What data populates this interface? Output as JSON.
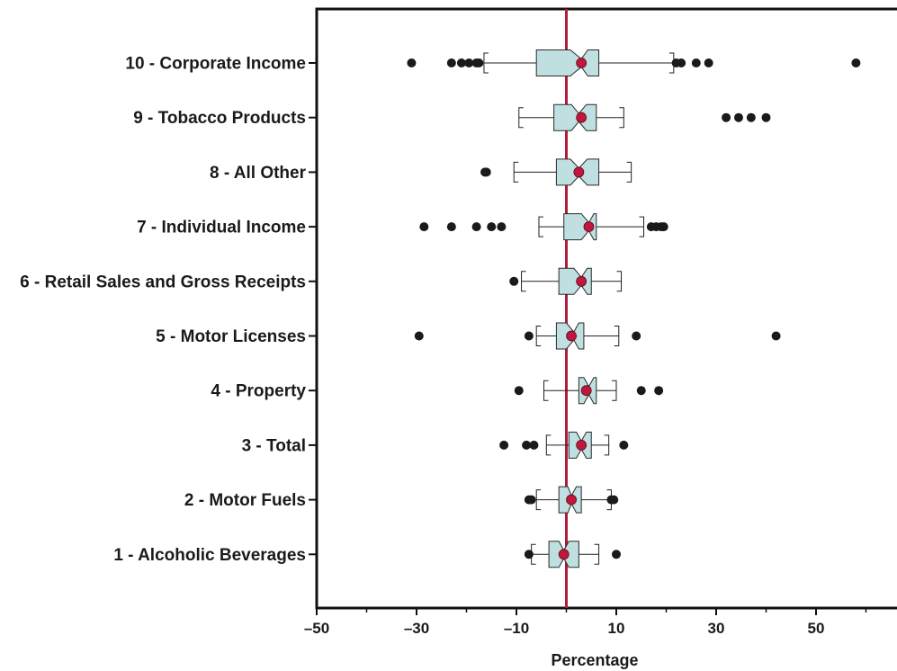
{
  "chart_data": {
    "type": "boxplot",
    "orientation": "horizontal",
    "xlabel": "Percentage",
    "xlim": [
      -50,
      68
    ],
    "xticks": [
      -50,
      -30,
      -10,
      10,
      30,
      50
    ],
    "xtick_labels": [
      "–50",
      "–30",
      "–10",
      "10",
      "30",
      "50"
    ],
    "xminor_ticks": [
      -40,
      -20,
      0,
      20,
      40,
      60
    ],
    "reference_line": 0,
    "colors": {
      "box_fill": "#bfdfe1",
      "box_stroke": "#2a2a2a",
      "mean_marker": "#c0173c",
      "reference_line": "#b01d3a",
      "outlier": "#1a1a1a"
    },
    "categories": [
      "10 - Corporate Income",
      "9 - Tobacco Products",
      "8 - All Other",
      "7 - Individual Income",
      "6 - Retail Sales and Gross Receipts",
      "5 -  Motor Licenses",
      "4 - Property",
      "3 - Total",
      "2 - Motor Fuels",
      "1 - Alcoholic Beverages"
    ],
    "boxes": [
      {
        "whisker_low": -16.5,
        "q1": -6.0,
        "median": 3.0,
        "q3": 6.5,
        "whisker_high": 21.5,
        "notch": [
          0.8,
          4.3
        ],
        "mean": 3.0,
        "outliers": [
          -31.0,
          -23.0,
          -21.0,
          -19.5,
          -18.0,
          -17.5,
          22.0,
          23.0,
          26.0,
          28.5,
          58.0
        ]
      },
      {
        "whisker_low": -9.5,
        "q1": -2.5,
        "median": 2.5,
        "q3": 6.0,
        "whisker_high": 11.5,
        "notch": [
          1.0,
          4.0
        ],
        "mean": 3.0,
        "outliers": [
          32.0,
          34.5,
          37.0,
          40.0
        ]
      },
      {
        "whisker_low": -10.5,
        "q1": -2.0,
        "median": 2.5,
        "q3": 6.5,
        "whisker_high": 13.0,
        "notch": [
          0.8,
          4.2
        ],
        "mean": 2.5,
        "outliers": [
          -16.3,
          -16.0
        ]
      },
      {
        "whisker_low": -5.5,
        "q1": -0.5,
        "median": 4.5,
        "q3": 6.0,
        "whisker_high": 15.5,
        "notch": [
          3.0,
          5.5
        ],
        "mean": 4.5,
        "outliers": [
          -28.5,
          -23.0,
          -18.0,
          -15.0,
          -13.0,
          17.0,
          18.0,
          19.0,
          19.5
        ]
      },
      {
        "whisker_low": -9.0,
        "q1": -1.5,
        "median": 3.0,
        "q3": 5.0,
        "whisker_high": 11.0,
        "notch": [
          1.5,
          4.2
        ],
        "mean": 3.0,
        "outliers": [
          -10.5
        ]
      },
      {
        "whisker_low": -6.0,
        "q1": -2.0,
        "median": 1.5,
        "q3": 3.5,
        "whisker_high": 10.5,
        "notch": [
          0.0,
          2.5
        ],
        "mean": 1.0,
        "outliers": [
          -29.5,
          -7.5,
          14.0,
          42.0
        ]
      },
      {
        "whisker_low": -4.5,
        "q1": 2.5,
        "median": 4.5,
        "q3": 6.0,
        "whisker_high": 10.0,
        "notch": [
          3.5,
          5.5
        ],
        "mean": 4.0,
        "outliers": [
          -9.5,
          15.0,
          18.5
        ]
      },
      {
        "whisker_low": -4.0,
        "q1": 0.5,
        "median": 3.0,
        "q3": 5.0,
        "whisker_high": 8.5,
        "notch": [
          2.0,
          4.0
        ],
        "mean": 3.0,
        "outliers": [
          -12.5,
          -8.0,
          -6.5,
          11.5
        ]
      },
      {
        "whisker_low": -6.0,
        "q1": -1.5,
        "median": 1.0,
        "q3": 3.0,
        "whisker_high": 9.0,
        "notch": [
          0.3,
          2.0
        ],
        "mean": 1.0,
        "outliers": [
          -7.5,
          -7.0,
          9.0,
          9.5
        ]
      },
      {
        "whisker_low": -7.0,
        "q1": -3.5,
        "median": -0.5,
        "q3": 2.5,
        "whisker_high": 6.5,
        "notch": [
          -1.5,
          0.5
        ],
        "mean": -0.5,
        "outliers": [
          -7.5,
          10.0
        ]
      }
    ]
  }
}
